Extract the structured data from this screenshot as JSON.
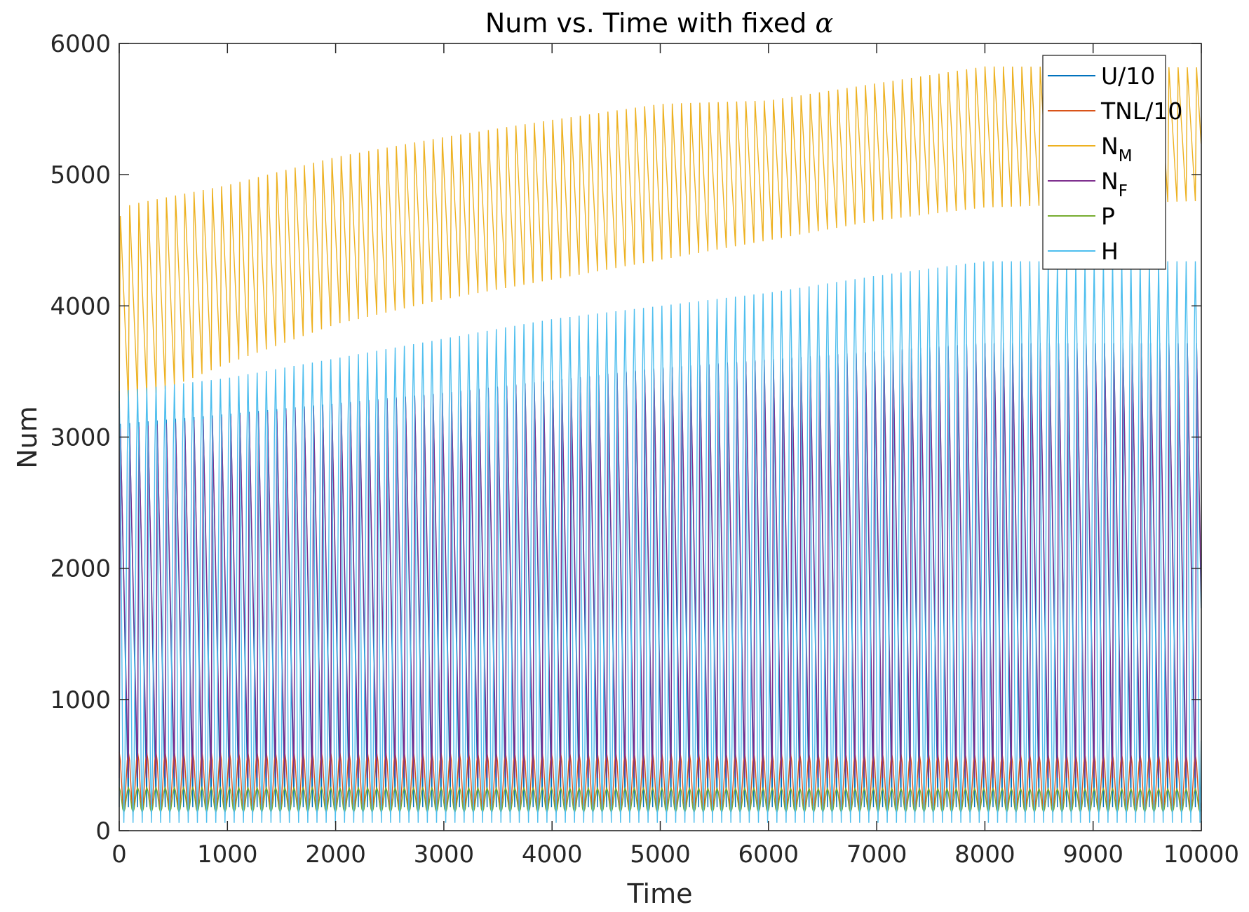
{
  "chart_data": {
    "type": "line",
    "title": {
      "text": "Num vs. Time with fixed ",
      "symbol": "α"
    },
    "xlabel": "Time",
    "ylabel": "Num",
    "xlim": [
      0,
      10000
    ],
    "ylim": [
      0,
      6000
    ],
    "x_ticks": [
      0,
      1000,
      2000,
      3000,
      4000,
      5000,
      6000,
      7000,
      8000,
      9000,
      10000
    ],
    "x_tick_labels": [
      "0",
      "1000",
      "2000",
      "3000",
      "4000",
      "5000",
      "6000",
      "7000",
      "8000",
      "9000",
      "10000"
    ],
    "y_ticks": [
      0,
      1000,
      2000,
      3000,
      4000,
      5000,
      6000
    ],
    "y_tick_labels": [
      "0",
      "1000",
      "2000",
      "3000",
      "4000",
      "5000",
      "6000"
    ],
    "grid": false,
    "legend_position": "top-right",
    "oscillation_period": 85,
    "series": [
      {
        "name": "U/10",
        "label_main": "U/10",
        "label_sub": "",
        "color": "#0072BD",
        "peak_t": [
          0,
          1000,
          3000,
          5000,
          8000,
          10000
        ],
        "peak_v": [
          3250,
          3330,
          3500,
          3700,
          3900,
          3900
        ],
        "trough_t": [
          0,
          10000
        ],
        "trough_v": [
          180,
          180
        ]
      },
      {
        "name": "TNL/10",
        "label_main": "TNL/10",
        "label_sub": "",
        "color": "#D95319",
        "peak_t": [
          0,
          10000
        ],
        "peak_v": [
          600,
          580
        ],
        "trough_t": [
          0,
          10000
        ],
        "trough_v": [
          150,
          150
        ]
      },
      {
        "name": "N_M",
        "label_main": "N",
        "label_sub": "M",
        "color": "#EDB120",
        "peak_t": [
          0,
          100,
          1000,
          2000,
          3000,
          4000,
          5000,
          6000,
          7000,
          8000,
          10000
        ],
        "peak_v": [
          4750,
          4850,
          4990,
          5200,
          5350,
          5480,
          5600,
          5620,
          5750,
          5880,
          5870
        ],
        "trough_t": [
          0,
          1000,
          2000,
          3000,
          4000,
          5000,
          6000,
          7000,
          8000,
          10000
        ],
        "trough_v": [
          3220,
          3560,
          3860,
          4050,
          4200,
          4350,
          4500,
          4650,
          4750,
          4800
        ]
      },
      {
        "name": "N_F",
        "label_main": "N",
        "label_sub": "F",
        "color": "#7E2F8E",
        "peak_t": [
          0,
          1000,
          3000,
          5000,
          8000,
          10000
        ],
        "peak_v": [
          3200,
          3300,
          3480,
          3680,
          3880,
          3880
        ],
        "trough_t": [
          0,
          10000
        ],
        "trough_v": [
          400,
          400
        ]
      },
      {
        "name": "P",
        "label_main": "P",
        "label_sub": "",
        "color": "#77AC30",
        "peak_t": [
          0,
          10000
        ],
        "peak_v": [
          330,
          320
        ],
        "trough_t": [
          0,
          10000
        ],
        "trough_v": [
          140,
          140
        ]
      },
      {
        "name": "H",
        "label_main": "H",
        "label_sub": "",
        "color": "#4DBEEE",
        "peak_t": [
          0,
          1000,
          2000,
          3000,
          4000,
          5000,
          6000,
          7000,
          8000,
          10000
        ],
        "peak_v": [
          3350,
          3450,
          3600,
          3750,
          3900,
          4000,
          4100,
          4230,
          4340,
          4340
        ],
        "trough_t": [
          0,
          10000
        ],
        "trough_v": [
          60,
          60
        ]
      }
    ]
  }
}
